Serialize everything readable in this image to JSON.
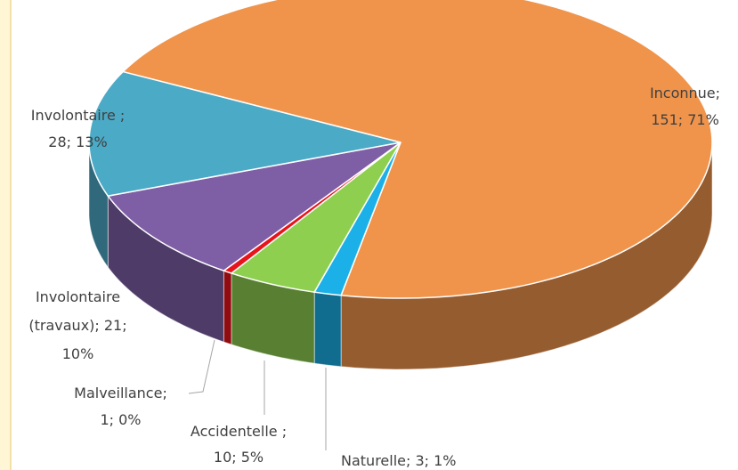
{
  "chart_data": {
    "type": "pie3d",
    "categories": [
      "Inconnue",
      "Naturelle",
      "Accidentelle",
      "Malveillance",
      "Involontaire (travaux)",
      "Involontaire"
    ],
    "values": [
      151,
      3,
      10,
      1,
      21,
      28
    ],
    "value_labels": [
      "Inconnue; 151; 71%",
      "Naturelle; 3; 1%",
      "Accidentelle ; 10; 5%",
      "Malveillance; 1; 0%",
      "Involontaire (travaux); 21; 10%",
      "Involontaire ; 28; 13%"
    ],
    "colors": [
      "#f0944b",
      "#1cb0e8",
      "#8fcf50",
      "#e8141c",
      "#7e5fa6",
      "#4baac6"
    ]
  }
}
